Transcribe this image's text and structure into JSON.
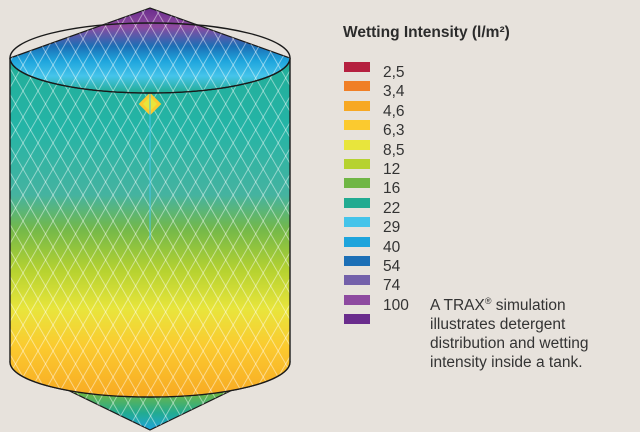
{
  "legend": {
    "title": "Wetting Intensity (l/m²)",
    "items": [
      {
        "label": "2,5",
        "color": "#b5203f"
      },
      {
        "label": "3,4",
        "color": "#f07f26"
      },
      {
        "label": "4,6",
        "color": "#f7a823"
      },
      {
        "label": "6,3",
        "color": "#fbca2f"
      },
      {
        "label": "8,5",
        "color": "#e8e53c"
      },
      {
        "label": "12",
        "color": "#b6d230"
      },
      {
        "label": "16",
        "color": "#6fb644"
      },
      {
        "label": "22",
        "color": "#22ab91"
      },
      {
        "label": "29",
        "color": "#45c4ea"
      },
      {
        "label": "40",
        "color": "#1ea4dc"
      },
      {
        "label": "54",
        "color": "#1c6fb6"
      },
      {
        "label": "74",
        "color": "#7460aa"
      },
      {
        "label": "100",
        "color": "#8e4aa0"
      },
      {
        "label": "",
        "color": "#6a2c8c"
      }
    ]
  },
  "caption": {
    "part1": "A TRAX",
    "mark": "®",
    "part2": " simulation illustrates detergent distribution and wetting intensity inside a tank."
  }
}
